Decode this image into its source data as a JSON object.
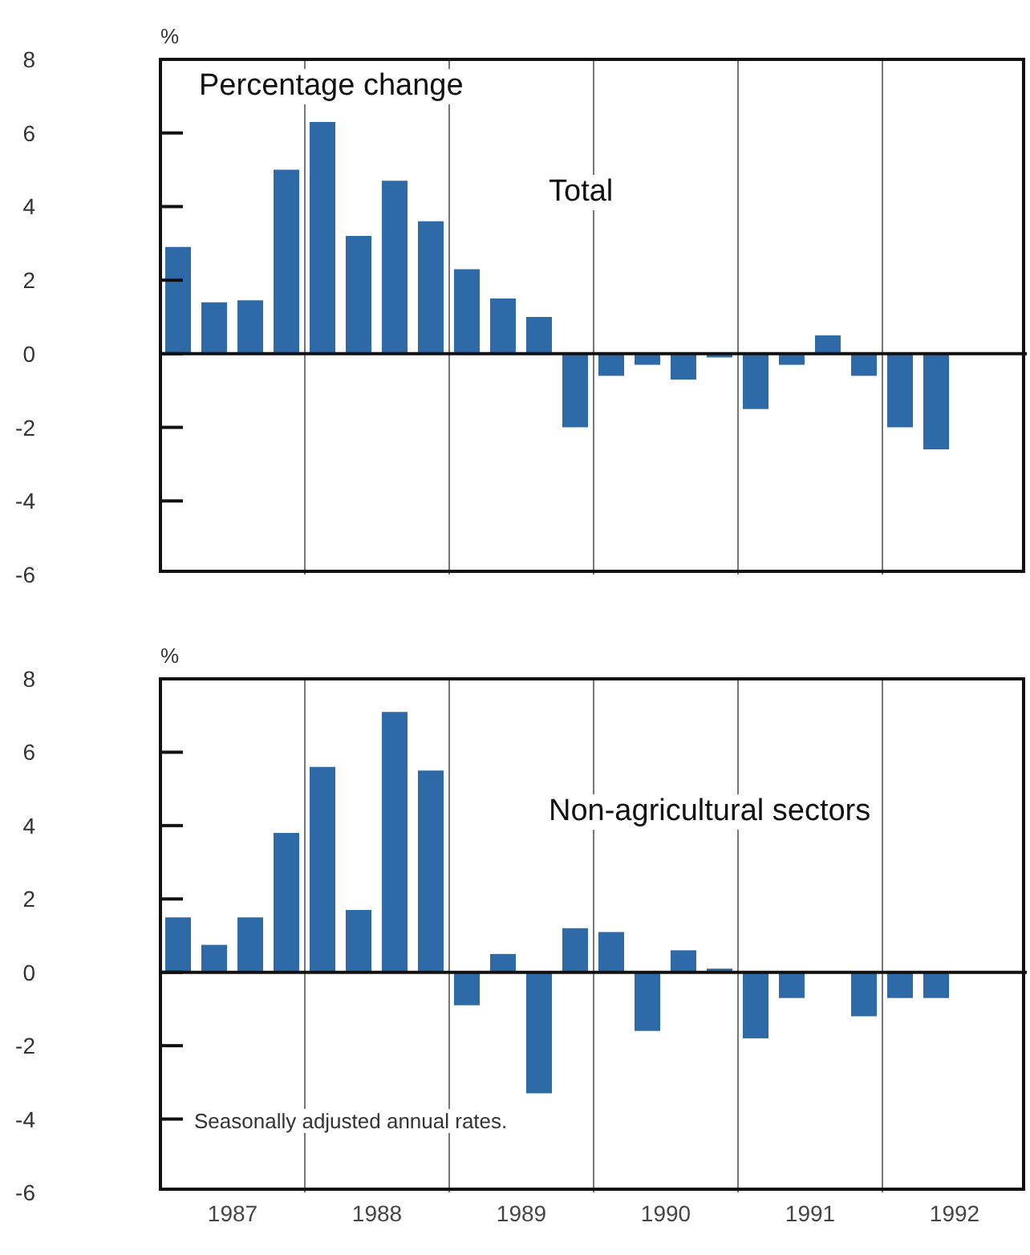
{
  "chart_data": [
    {
      "type": "bar",
      "title": "Total",
      "annotations": [
        "Percentage change"
      ],
      "ylabel": "%",
      "color": "#2e6aa8",
      "x": [
        1987.125,
        1987.375,
        1987.625,
        1987.875,
        1988.125,
        1988.375,
        1988.625,
        1988.875,
        1989.125,
        1989.375,
        1989.625,
        1989.875,
        1990.125,
        1990.375,
        1990.625,
        1990.875,
        1991.125,
        1991.375,
        1991.625,
        1991.875,
        1992.125,
        1992.375
      ],
      "values": [
        2.9,
        1.4,
        1.45,
        5.0,
        6.3,
        3.2,
        4.7,
        3.6,
        2.3,
        1.5,
        1.0,
        -2.0,
        -0.6,
        -0.3,
        -0.7,
        -0.1,
        -1.5,
        -0.3,
        0.5,
        -0.6,
        -2.0,
        -2.6
      ],
      "xlim": [
        1987,
        1993
      ],
      "ylim": [
        -6,
        8
      ],
      "yticks": [
        8,
        6,
        4,
        2,
        0,
        -2,
        -4,
        -6
      ],
      "tick_labels": "y",
      "ref_lines": [
        {
          "axis": "x",
          "value": 1988,
          "color": "#777777"
        },
        {
          "axis": "x",
          "value": 1989,
          "color": "#777777"
        },
        {
          "axis": "x",
          "value": 1990,
          "color": "#777777"
        },
        {
          "axis": "x",
          "value": 1991,
          "color": "#777777"
        },
        {
          "axis": "x",
          "value": 1992,
          "color": "#777777"
        },
        {
          "axis": "y",
          "value": 0,
          "color": "#111111"
        }
      ]
    },
    {
      "type": "bar",
      "title": "Non-agricultural sectors",
      "annotations": [
        "Seasonally adjusted annual rates."
      ],
      "ylabel": "%",
      "color": "#2e6aa8",
      "x": [
        1987.125,
        1987.375,
        1987.625,
        1987.875,
        1988.125,
        1988.375,
        1988.625,
        1988.875,
        1989.125,
        1989.375,
        1989.625,
        1989.875,
        1990.125,
        1990.375,
        1990.625,
        1990.875,
        1991.125,
        1991.375,
        1991.625,
        1991.875,
        1992.125,
        1992.375
      ],
      "values": [
        1.5,
        0.75,
        1.5,
        3.8,
        5.6,
        1.7,
        7.1,
        5.5,
        -0.9,
        0.5,
        -3.3,
        1.2,
        1.1,
        -1.6,
        0.6,
        0.1,
        -1.8,
        -0.7,
        0,
        -1.2,
        -0.7,
        -0.7
      ],
      "xlim": [
        1987,
        1993
      ],
      "xticks": [
        {
          "value": 1987.5,
          "label": "1987"
        },
        {
          "value": 1988.5,
          "label": "1988"
        },
        {
          "value": 1989.5,
          "label": "1989"
        },
        {
          "value": 1990.5,
          "label": "1990"
        },
        {
          "value": 1991.5,
          "label": "1991"
        },
        {
          "value": 1992.5,
          "label": "1992"
        }
      ],
      "ylim": [
        -6,
        8
      ],
      "yticks": [
        8,
        6,
        4,
        2,
        0,
        -2,
        -4,
        -6
      ],
      "ref_lines": [
        {
          "axis": "x",
          "value": 1988,
          "color": "#777777"
        },
        {
          "axis": "x",
          "value": 1989,
          "color": "#777777"
        },
        {
          "axis": "x",
          "value": 1990,
          "color": "#777777"
        },
        {
          "axis": "x",
          "value": 1991,
          "color": "#777777"
        },
        {
          "axis": "x",
          "value": 1992,
          "color": "#777777"
        },
        {
          "axis": "y",
          "value": 0,
          "color": "#111111"
        }
      ]
    }
  ]
}
